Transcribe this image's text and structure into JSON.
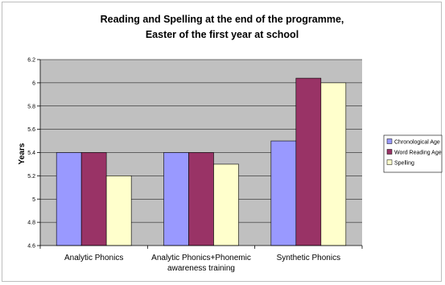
{
  "chart_data": {
    "type": "bar",
    "title": "Reading and Spelling at the end of the programme,",
    "subtitle": "Easter of the first year at school",
    "ylabel": "Years",
    "ylim": [
      4.6,
      6.2
    ],
    "yticks": [
      "4.6",
      "4.8",
      "5",
      "5.2",
      "5.4",
      "5.6",
      "5.8",
      "6",
      "6.2"
    ],
    "categories": [
      "Analytic Phonics",
      "Analytic Phonics+Phonemic awareness training",
      "Synthetic Phonics"
    ],
    "category_lines": [
      [
        "Analytic Phonics"
      ],
      [
        "Analytic Phonics+Phonemic",
        "awareness training"
      ],
      [
        "Synthetic Phonics"
      ]
    ],
    "series": [
      {
        "name": "Chronological Age",
        "values": [
          5.4,
          5.4,
          5.5
        ],
        "color": "#9999ff"
      },
      {
        "name": "Word Reading Age",
        "values": [
          5.4,
          5.4,
          6.04
        ],
        "color": "#993366"
      },
      {
        "name": "Spelling",
        "values": [
          5.2,
          5.3,
          6.0
        ],
        "color": "#ffffcc"
      }
    ],
    "plot_background": "#c0c0c0",
    "grid": true,
    "legend_position": "right"
  }
}
